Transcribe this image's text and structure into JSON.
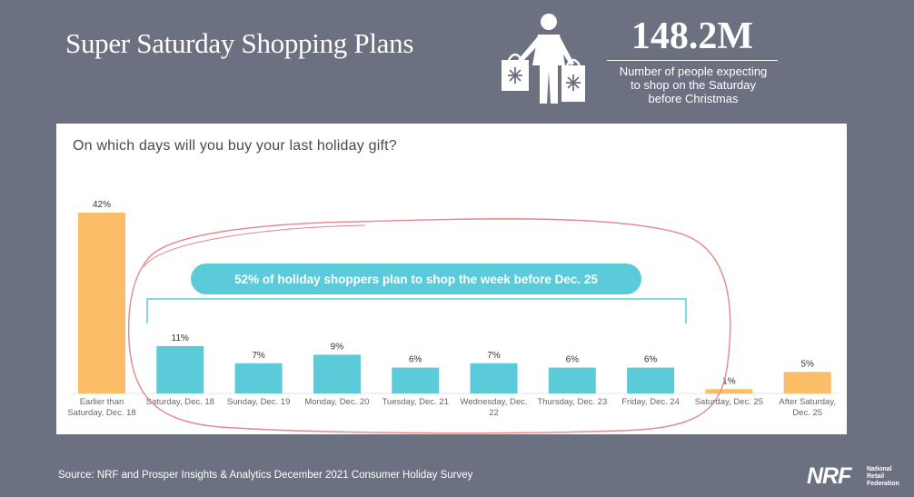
{
  "header": {
    "title": "Super Saturday Shopping Plans",
    "stat_value": "148.2M",
    "stat_line1": "Number of people expecting",
    "stat_line2": "to shop on the Saturday",
    "stat_line3": "before Christmas",
    "icon": "shopper-with-bags-icon"
  },
  "question": "On which days will you buy your last holiday gift?",
  "callout": "52% of holiday shoppers plan to shop the week before Dec. 25",
  "source": "Source: NRF and Prosper Insights & Analytics December 2021 Consumer Holiday Survey",
  "logo": {
    "mark": "NRF",
    "line1": "National",
    "line2": "Retail",
    "line3": "Federation"
  },
  "colors": {
    "orange": "#fbbd68",
    "teal": "#5ccbd9",
    "background": "#6b7180",
    "annotation": "#e8858a"
  },
  "chart_data": {
    "type": "bar",
    "categories": [
      [
        "Earlier than",
        "Saturday, Dec. 18"
      ],
      [
        "Saturday, Dec. 18"
      ],
      [
        "Sunday, Dec. 19"
      ],
      [
        "Monday, Dec. 20"
      ],
      [
        "Tuesday, Dec. 21"
      ],
      [
        "Wednesday, Dec.",
        "22"
      ],
      [
        "Thursday, Dec. 23"
      ],
      [
        "Friday, Dec. 24"
      ],
      [
        "Saturday, Dec. 25"
      ],
      [
        "After Saturday,",
        "Dec. 25"
      ]
    ],
    "values": [
      42,
      11,
      7,
      9,
      6,
      7,
      6,
      6,
      1,
      5
    ],
    "labels": [
      "42%",
      "11%",
      "7%",
      "9%",
      "6%",
      "7%",
      "6%",
      "6%",
      "1%",
      "5%"
    ],
    "bar_colors": [
      "#fbbd68",
      "#5ccbd9",
      "#5ccbd9",
      "#5ccbd9",
      "#5ccbd9",
      "#5ccbd9",
      "#5ccbd9",
      "#5ccbd9",
      "#fbbd68",
      "#fbbd68"
    ],
    "ylim": [
      0,
      42
    ],
    "bracket_categories": [
      1,
      7
    ]
  }
}
